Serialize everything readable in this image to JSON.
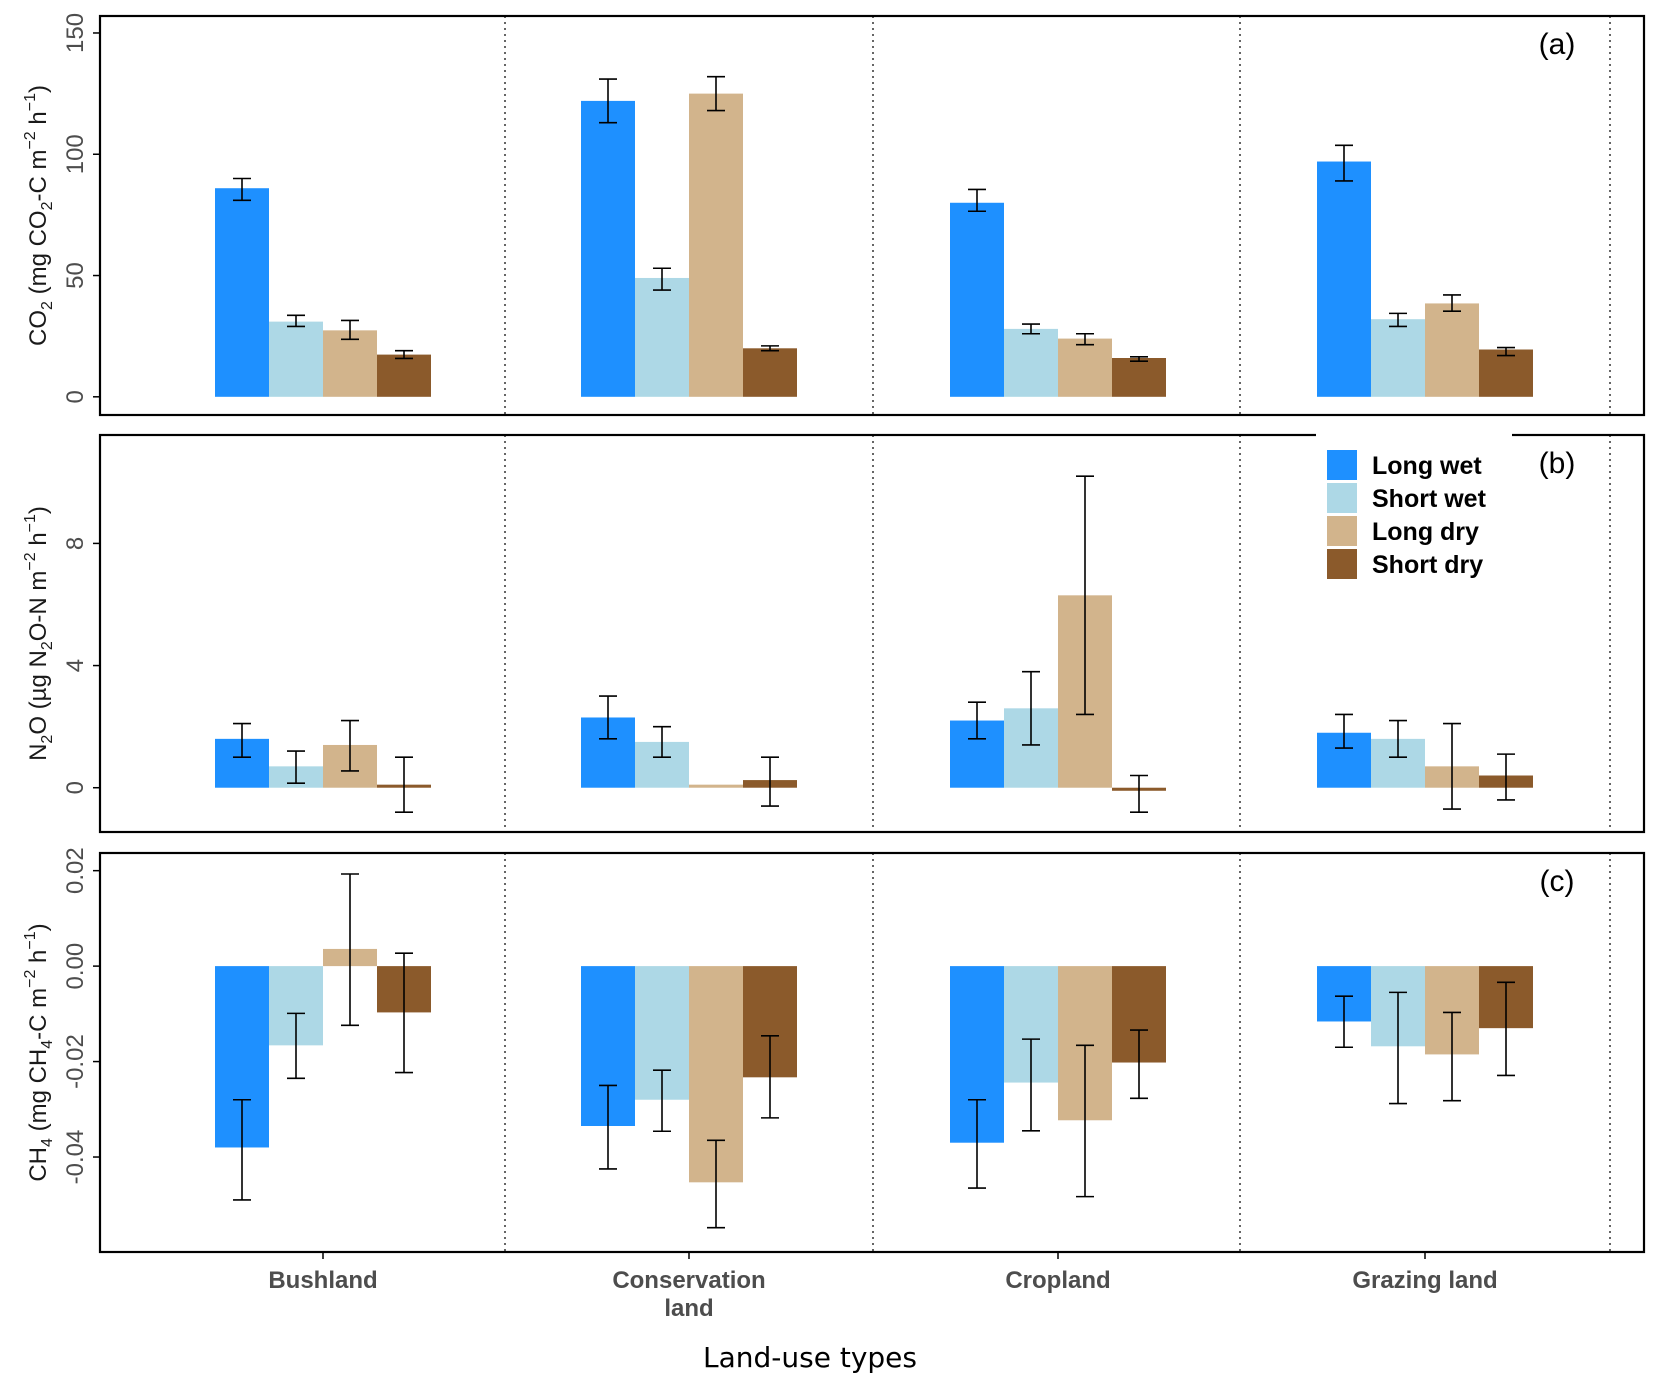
{
  "chart_data": {
    "type": "bar",
    "xlabel": "Land-use types",
    "categories": [
      "Bushland",
      "Conservation\nland",
      "Cropland",
      "Grazing land"
    ],
    "legend": {
      "placement": "top-right of panel (b)",
      "entries": [
        {
          "name": "Long wet",
          "color": "#1E90FF"
        },
        {
          "name": "Short wet",
          "color": "#ADD8E6"
        },
        {
          "name": "Long dry",
          "color": "#D2B48C"
        },
        {
          "name": "Short dry",
          "color": "#8B5A2B"
        }
      ]
    },
    "panels": [
      {
        "tag": "(a)",
        "ylabel_main": "CO",
        "ylabel_sub": "2",
        "ylabel_rest": " (mg CO",
        "ylabel_sub2": "2",
        "ylabel_tail": "-C m",
        "ylabel_sup1": "−2",
        "ylabel_mid": " h",
        "ylabel_sup2": "−1",
        "ylabel_end": ")",
        "ylim": [
          -7.5,
          157
        ],
        "yticks": [
          0,
          50,
          100,
          150
        ],
        "ytick_labels": [
          "0",
          "50",
          "100",
          "150"
        ],
        "series": [
          {
            "name": "Long wet",
            "values": [
              86,
              122,
              80,
              97
            ],
            "err_low": [
              81,
              113,
              76.5,
              89
            ],
            "err_high": [
              90,
              131,
              85.5,
              103.7
            ]
          },
          {
            "name": "Short wet",
            "values": [
              31,
              49,
              28,
              32
            ],
            "err_low": [
              29,
              44,
              26,
              29
            ],
            "err_high": [
              33.6,
              53,
              30,
              34.4
            ]
          },
          {
            "name": "Long dry",
            "values": [
              27.4,
              125,
              24,
              38.5
            ],
            "err_low": [
              23.7,
              118,
              21.5,
              35.3
            ],
            "err_high": [
              31.5,
              132,
              26,
              42
            ]
          },
          {
            "name": "Short dry",
            "values": [
              17.4,
              20,
              16,
              19.5
            ],
            "err_low": [
              15.8,
              19,
              14.7,
              17
            ],
            "err_high": [
              19,
              21,
              16.5,
              20.3
            ]
          }
        ]
      },
      {
        "tag": "(b)",
        "ylabel_main": "N",
        "ylabel_sub": "2",
        "ylabel_rest": "O (µg N",
        "ylabel_sub2": "2",
        "ylabel_tail": "O-N m",
        "ylabel_sup1": "−2",
        "ylabel_mid": " h",
        "ylabel_sup2": "−1",
        "ylabel_end": ")",
        "ylim": [
          -1.45,
          11.55
        ],
        "yticks": [
          0,
          4,
          8
        ],
        "ytick_labels": [
          "0",
          "4",
          "8"
        ],
        "series": [
          {
            "name": "Long wet",
            "values": [
              1.6,
              2.3,
              2.2,
              1.8
            ],
            "err_low": [
              1.0,
              1.6,
              1.6,
              1.3
            ],
            "err_high": [
              2.1,
              3.0,
              2.8,
              2.4
            ]
          },
          {
            "name": "Short wet",
            "values": [
              0.7,
              1.5,
              2.6,
              1.6
            ],
            "err_low": [
              0.15,
              1.0,
              1.4,
              1.0
            ],
            "err_high": [
              1.2,
              2.0,
              3.8,
              2.2
            ]
          },
          {
            "name": "Long dry",
            "values": [
              1.4,
              0.1,
              6.3,
              0.7
            ],
            "err_low": [
              0.55,
              null,
              2.4,
              -0.7
            ],
            "err_high": [
              2.2,
              null,
              10.2,
              2.1
            ]
          },
          {
            "name": "Short dry",
            "values": [
              0.1,
              0.25,
              -0.1,
              0.4
            ],
            "err_low": [
              -0.8,
              -0.6,
              -0.8,
              -0.4
            ],
            "err_high": [
              1.0,
              1.0,
              0.4,
              1.1
            ]
          }
        ]
      },
      {
        "tag": "(c)",
        "ylabel_main": "CH",
        "ylabel_sub": "4",
        "ylabel_rest": " (mg CH",
        "ylabel_sub2": "4",
        "ylabel_tail": "-C m",
        "ylabel_sup1": "−2",
        "ylabel_mid": " h",
        "ylabel_sup2": "−1",
        "ylabel_end": ")",
        "ylim": [
          -0.0599,
          0.0237
        ],
        "yticks": [
          -0.04,
          -0.02,
          0.0,
          0.02
        ],
        "ytick_labels": [
          "-0.04",
          "-0.02",
          "0.00",
          "0.02"
        ],
        "series": [
          {
            "name": "Long wet",
            "values": [
              -0.038,
              -0.0335,
              -0.037,
              -0.0116
            ],
            "err_low": [
              -0.049,
              -0.0425,
              -0.0465,
              -0.017
            ],
            "err_high": [
              -0.028,
              -0.025,
              -0.028,
              -0.0063
            ]
          },
          {
            "name": "Short wet",
            "values": [
              -0.0166,
              -0.028,
              -0.0244,
              -0.0168
            ],
            "err_low": [
              -0.0235,
              -0.0346,
              -0.0345,
              -0.0288
            ],
            "err_high": [
              -0.0099,
              -0.0218,
              -0.0153,
              -0.0055
            ]
          },
          {
            "name": "Long dry",
            "values": [
              0.0036,
              -0.0453,
              -0.0323,
              -0.0185
            ],
            "err_low": [
              -0.0124,
              -0.0548,
              -0.0483,
              -0.0282
            ],
            "err_high": [
              0.0193,
              -0.0365,
              -0.0166,
              -0.0097
            ]
          },
          {
            "name": "Short dry",
            "values": [
              -0.0097,
              -0.0233,
              -0.0202,
              -0.013
            ],
            "err_low": [
              -0.0223,
              -0.0318,
              -0.0277,
              -0.0229
            ],
            "err_high": [
              0.0027,
              -0.0146,
              -0.0134,
              -0.0034
            ]
          }
        ]
      }
    ],
    "grid": false
  }
}
